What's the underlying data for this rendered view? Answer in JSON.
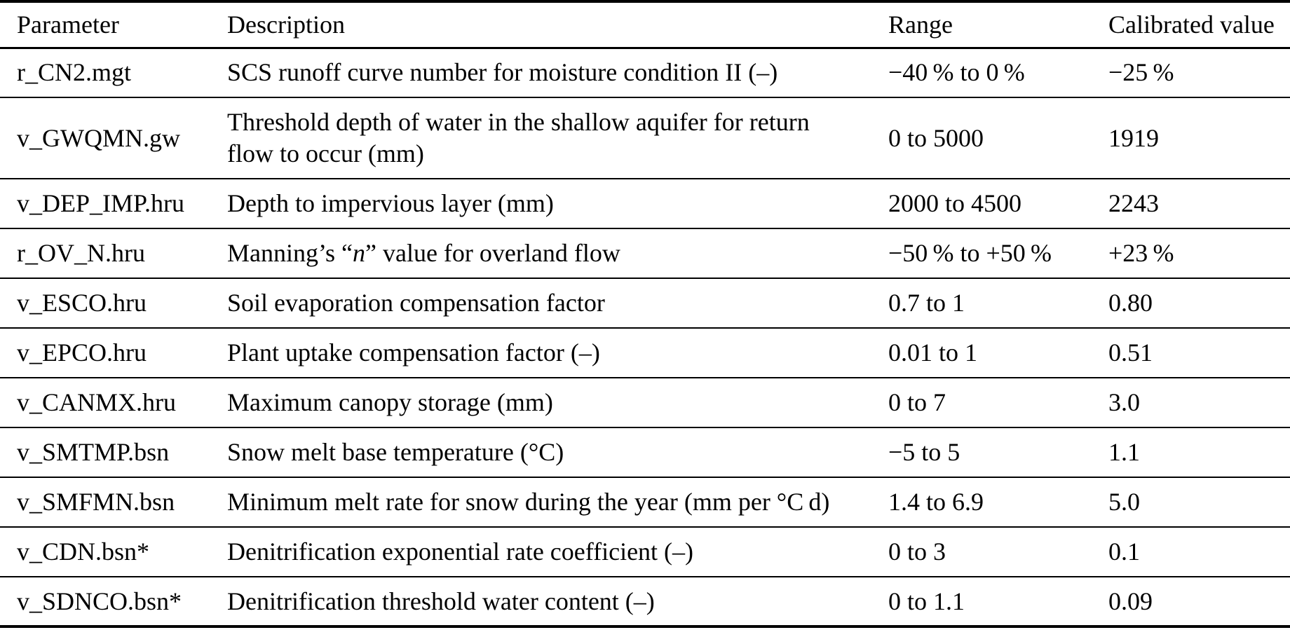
{
  "table": {
    "columns": [
      "Parameter",
      "Description",
      "Range",
      "Calibrated value"
    ],
    "rows": [
      {
        "param": "r_CN2.mgt",
        "desc": [
          {
            "t": "SCS runoff curve number for moisture condition II (–)"
          }
        ],
        "range": "−40 % to 0 %",
        "value": "−25 %"
      },
      {
        "param": "v_GWQMN.gw",
        "desc": [
          {
            "t": "Threshold depth of water in the shallow aquifer for return\nflow to occur (mm)"
          }
        ],
        "range": "0 to 5000",
        "value": "1919",
        "tall": true
      },
      {
        "param": "v_DEP_IMP.hru",
        "desc": [
          {
            "t": "Depth to impervious layer (mm)"
          }
        ],
        "range": "2000 to 4500",
        "value": "2243"
      },
      {
        "param": "r_OV_N.hru",
        "desc": [
          {
            "t": "Manning’s “"
          },
          {
            "t": "n",
            "i": true
          },
          {
            "t": "” value for overland flow"
          }
        ],
        "range": "−50 % to +50 %",
        "value": "+23 %"
      },
      {
        "param": "v_ESCO.hru",
        "desc": [
          {
            "t": "Soil evaporation compensation factor"
          }
        ],
        "range": "0.7 to 1",
        "value": "0.80"
      },
      {
        "param": "v_EPCO.hru",
        "desc": [
          {
            "t": "Plant uptake compensation factor (–)"
          }
        ],
        "range": "0.01 to 1",
        "value": "0.51"
      },
      {
        "param": "v_CANMX.hru",
        "desc": [
          {
            "t": "Maximum canopy storage (mm)"
          }
        ],
        "range": "0 to 7",
        "value": "3.0"
      },
      {
        "param": "v_SMTMP.bsn",
        "desc": [
          {
            "t": "Snow melt base temperature (°C)"
          }
        ],
        "range": "−5 to 5",
        "value": "1.1"
      },
      {
        "param": "v_SMFMN.bsn",
        "desc": [
          {
            "t": "Minimum melt rate for snow during the year (mm per °C d)"
          }
        ],
        "range": "1.4 to 6.9",
        "value": "5.0"
      },
      {
        "param": "v_CDN.bsn*",
        "desc": [
          {
            "t": "Denitrification exponential rate coefficient (–)"
          }
        ],
        "range": "0 to 3",
        "value": "0.1"
      },
      {
        "param": "v_SDNCO.bsn*",
        "desc": [
          {
            "t": "Denitrification threshold water content (–)"
          }
        ],
        "range": "0 to 1.1",
        "value": "0.09"
      }
    ]
  }
}
